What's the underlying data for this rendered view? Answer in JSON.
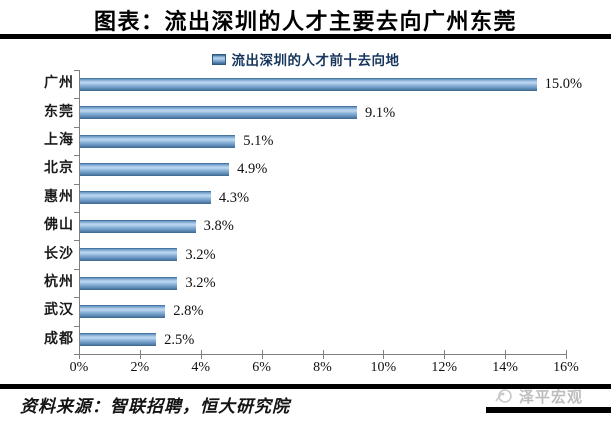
{
  "header": {
    "title": "图表：流出深圳的人才主要去向广州东莞"
  },
  "chart_data": {
    "type": "bar",
    "orientation": "horizontal",
    "legend_label": "流出深圳的人才前十去向地",
    "legend_position": "top",
    "categories": [
      "广州",
      "东莞",
      "上海",
      "北京",
      "惠州",
      "佛山",
      "长沙",
      "杭州",
      "武汉",
      "成都"
    ],
    "values": [
      15.0,
      9.1,
      5.1,
      4.9,
      4.3,
      3.8,
      3.2,
      3.2,
      2.8,
      2.5
    ],
    "data_labels": [
      "15.0%",
      "9.1%",
      "5.1%",
      "4.9%",
      "4.3%",
      "3.8%",
      "3.2%",
      "3.2%",
      "2.8%",
      "2.5%"
    ],
    "xlabel": "",
    "ylabel": "",
    "xlim": [
      0,
      16
    ],
    "x_tick_values": [
      0,
      2,
      4,
      6,
      8,
      10,
      12,
      14,
      16
    ],
    "x_ticks": [
      "0%",
      "2%",
      "4%",
      "6%",
      "8%",
      "10%",
      "12%",
      "14%",
      "16%"
    ],
    "grid": false,
    "colors": {
      "bar_light": "#bcd6ef",
      "bar_mid": "#6d9bc7",
      "bar_dark": "#31608e",
      "legend_text": "#17365d",
      "axis": "#7f7f7f",
      "watermark_gray": "#bdbdbd"
    }
  },
  "footer": {
    "source": "资料来源：智联招聘，恒大研究院",
    "watermark": "泽平宏观"
  }
}
